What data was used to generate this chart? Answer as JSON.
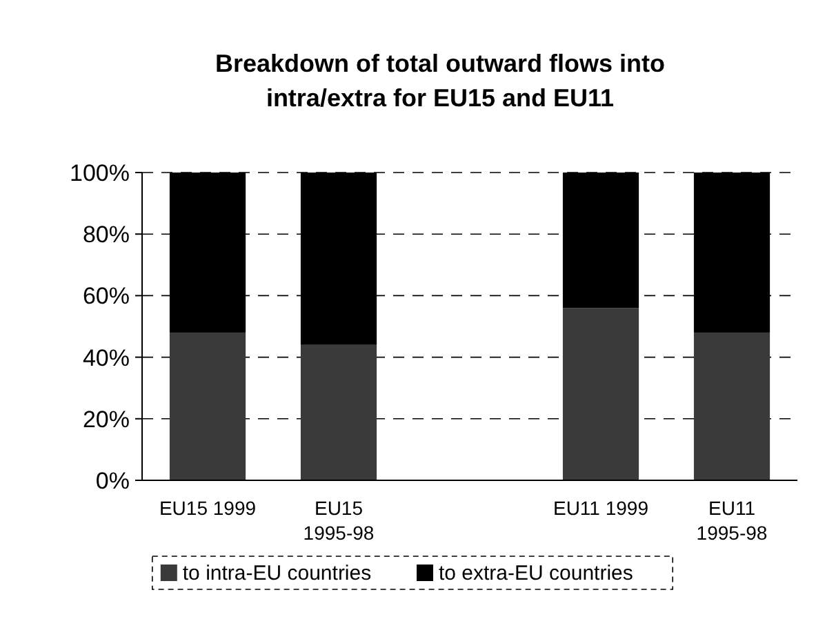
{
  "chart_data": {
    "type": "bar",
    "stacked": true,
    "title": "Breakdown of total outward flows into intra/extra for EU15 and EU11",
    "categories": [
      "EU15 1999",
      "EU15 1995-98",
      null,
      "EU11 1999",
      "EU11 1995-98"
    ],
    "series": [
      {
        "name": "to intra-EU countries",
        "color": "#3a3a3a",
        "values": [
          48,
          44,
          null,
          56,
          48
        ]
      },
      {
        "name": "to extra-EU countries",
        "color": "#000000",
        "values": [
          52,
          56,
          null,
          44,
          52
        ]
      }
    ],
    "ylim": [
      0,
      100
    ],
    "yticks": [
      {
        "value": 0,
        "label": "0%"
      },
      {
        "value": 20,
        "label": "20%"
      },
      {
        "value": 40,
        "label": "40%"
      },
      {
        "value": 60,
        "label": "60%"
      },
      {
        "value": 80,
        "label": "80%"
      },
      {
        "value": 100,
        "label": "100%"
      }
    ],
    "grid": "y",
    "legend": "bottom"
  }
}
